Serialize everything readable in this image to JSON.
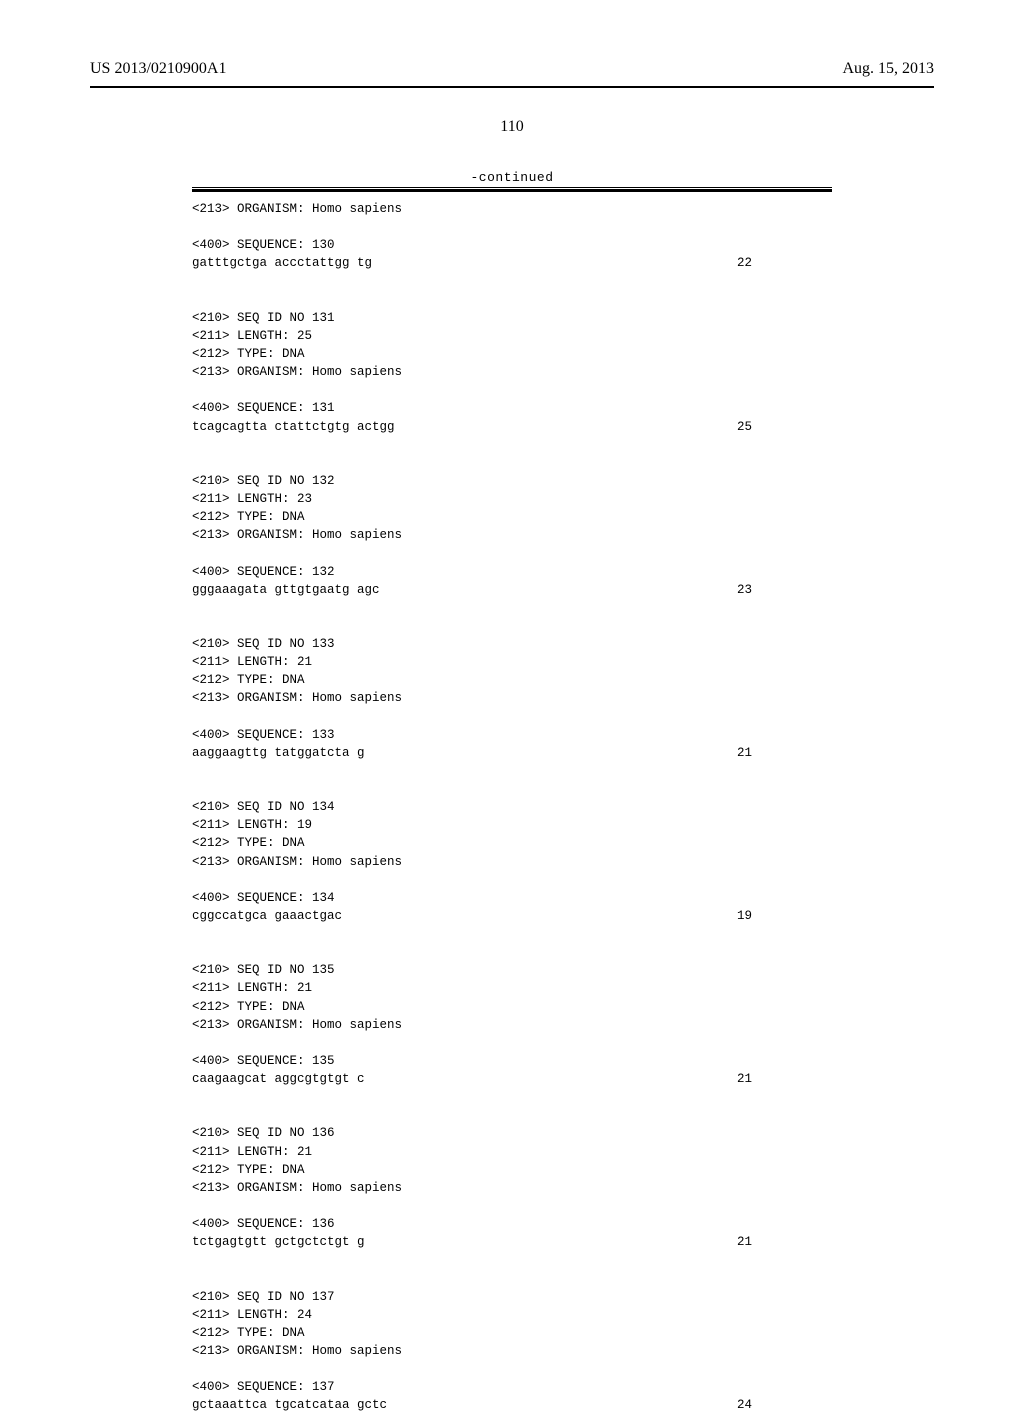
{
  "header": {
    "pub_number": "US 2013/0210900A1",
    "date": "Aug. 15, 2013"
  },
  "page_number": "110",
  "continued_label": "-continued",
  "entries": [
    {
      "pre": "<213> ORGANISM: Homo sapiens\n\n<400> SEQUENCE: 130\n",
      "seq": "gatttgctga accctattgg tg",
      "len": "22"
    },
    {
      "pre": "<210> SEQ ID NO 131\n<211> LENGTH: 25\n<212> TYPE: DNA\n<213> ORGANISM: Homo sapiens\n\n<400> SEQUENCE: 131\n",
      "seq": "tcagcagtta ctattctgtg actgg",
      "len": "25"
    },
    {
      "pre": "<210> SEQ ID NO 132\n<211> LENGTH: 23\n<212> TYPE: DNA\n<213> ORGANISM: Homo sapiens\n\n<400> SEQUENCE: 132\n",
      "seq": "gggaaagata gttgtgaatg agc",
      "len": "23"
    },
    {
      "pre": "<210> SEQ ID NO 133\n<211> LENGTH: 21\n<212> TYPE: DNA\n<213> ORGANISM: Homo sapiens\n\n<400> SEQUENCE: 133\n",
      "seq": "aaggaagttg tatggatcta g",
      "len": "21"
    },
    {
      "pre": "<210> SEQ ID NO 134\n<211> LENGTH: 19\n<212> TYPE: DNA\n<213> ORGANISM: Homo sapiens\n\n<400> SEQUENCE: 134\n",
      "seq": "cggccatgca gaaactgac",
      "len": "19"
    },
    {
      "pre": "<210> SEQ ID NO 135\n<211> LENGTH: 21\n<212> TYPE: DNA\n<213> ORGANISM: Homo sapiens\n\n<400> SEQUENCE: 135\n",
      "seq": "caagaagcat aggcgtgtgt c",
      "len": "21"
    },
    {
      "pre": "<210> SEQ ID NO 136\n<211> LENGTH: 21\n<212> TYPE: DNA\n<213> ORGANISM: Homo sapiens\n\n<400> SEQUENCE: 136\n",
      "seq": "tctgagtgtt gctgctctgt g",
      "len": "21"
    },
    {
      "pre": "<210> SEQ ID NO 137\n<211> LENGTH: 24\n<212> TYPE: DNA\n<213> ORGANISM: Homo sapiens\n\n<400> SEQUENCE: 137\n",
      "seq": "gctaaattca tgcatcataa gctc",
      "len": "24"
    }
  ]
}
